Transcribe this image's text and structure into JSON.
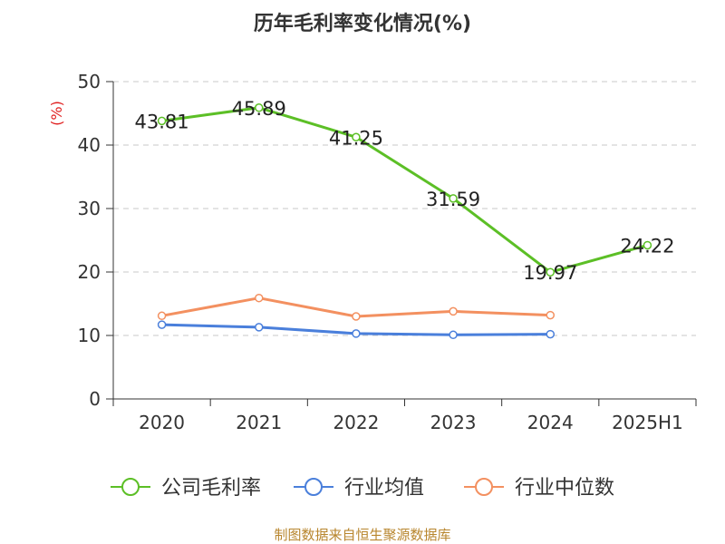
{
  "chart_data": {
    "type": "line",
    "title": "历年毛利率变化情况(%)",
    "ylabel": "(%)",
    "categories": [
      "2020",
      "2021",
      "2022",
      "2023",
      "2024",
      "2025H1"
    ],
    "ylim": [
      0,
      50
    ],
    "yticks": [
      "0",
      "10",
      "20",
      "30",
      "40",
      "50"
    ],
    "grid": true,
    "legend_position": "bottom",
    "series": [
      {
        "name": "公司毛利率",
        "color": "#5cbf26",
        "values": [
          43.81,
          45.89,
          41.25,
          31.59,
          19.97,
          24.22
        ],
        "labels": [
          "43.81",
          "45.89",
          "41.25",
          "31.59",
          "19.97",
          "24.22"
        ]
      },
      {
        "name": "行业均值",
        "color": "#4a7fdb",
        "values": [
          11.7,
          11.3,
          10.3,
          10.1,
          10.2,
          null
        ]
      },
      {
        "name": "行业中位数",
        "color": "#f39060",
        "values": [
          13.1,
          15.9,
          13.0,
          13.8,
          13.2,
          null
        ]
      }
    ]
  },
  "source": "制图数据来自恒生聚源数据库"
}
